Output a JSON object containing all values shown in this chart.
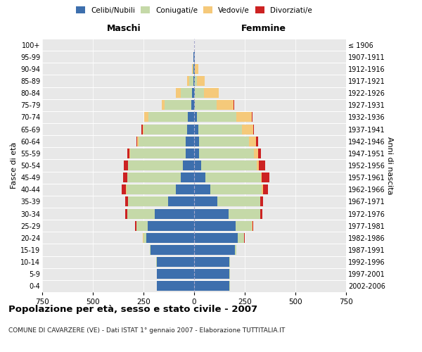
{
  "age_groups": [
    "0-4",
    "5-9",
    "10-14",
    "15-19",
    "20-24",
    "25-29",
    "30-34",
    "35-39",
    "40-44",
    "45-49",
    "50-54",
    "55-59",
    "60-64",
    "65-69",
    "70-74",
    "75-79",
    "80-84",
    "85-89",
    "90-94",
    "95-99",
    "100+"
  ],
  "birth_years": [
    "2002-2006",
    "1997-2001",
    "1992-1996",
    "1987-1991",
    "1982-1986",
    "1977-1981",
    "1972-1976",
    "1967-1971",
    "1962-1966",
    "1957-1961",
    "1952-1956",
    "1947-1951",
    "1942-1946",
    "1937-1941",
    "1932-1936",
    "1927-1931",
    "1922-1926",
    "1917-1921",
    "1912-1916",
    "1907-1911",
    "≤ 1906"
  ],
  "male": {
    "celibi": [
      185,
      185,
      185,
      215,
      235,
      230,
      195,
      130,
      90,
      65,
      55,
      40,
      40,
      35,
      30,
      15,
      10,
      5,
      3,
      2,
      0
    ],
    "coniugati": [
      0,
      0,
      2,
      5,
      15,
      55,
      135,
      195,
      245,
      265,
      270,
      275,
      235,
      215,
      195,
      130,
      55,
      18,
      5,
      2,
      0
    ],
    "vedovi": [
      0,
      0,
      0,
      0,
      2,
      0,
      0,
      0,
      2,
      0,
      2,
      5,
      5,
      5,
      20,
      15,
      25,
      10,
      3,
      0,
      0
    ],
    "divorziati": [
      0,
      0,
      0,
      0,
      2,
      5,
      10,
      15,
      20,
      20,
      20,
      10,
      5,
      5,
      0,
      0,
      0,
      0,
      0,
      0,
      0
    ]
  },
  "female": {
    "nubili": [
      175,
      175,
      175,
      200,
      215,
      205,
      170,
      115,
      80,
      55,
      35,
      25,
      25,
      20,
      15,
      5,
      5,
      3,
      2,
      2,
      0
    ],
    "coniugate": [
      2,
      2,
      3,
      10,
      30,
      80,
      155,
      210,
      255,
      275,
      275,
      270,
      245,
      215,
      195,
      105,
      45,
      10,
      3,
      0,
      0
    ],
    "vedove": [
      0,
      0,
      0,
      0,
      2,
      2,
      2,
      2,
      5,
      5,
      10,
      20,
      35,
      55,
      75,
      85,
      70,
      40,
      15,
      3,
      0
    ],
    "divorziate": [
      0,
      0,
      0,
      0,
      2,
      5,
      10,
      15,
      25,
      35,
      30,
      15,
      10,
      5,
      2,
      2,
      2,
      0,
      0,
      0,
      0
    ]
  },
  "colors": {
    "celibi_nubili": "#3d6fad",
    "coniugati": "#c5d9a8",
    "vedovi": "#f5c97a",
    "divorziati": "#cc2222"
  },
  "xlim": 750,
  "title": "Popolazione per età, sesso e stato civile - 2007",
  "subtitle": "COMUNE DI CAVARZERE (VE) - Dati ISTAT 1° gennaio 2007 - Elaborazione TUTTITALIA.IT",
  "xlabel_left": "Maschi",
  "xlabel_right": "Femmine",
  "ylabel_left": "Fasce di età",
  "ylabel_right": "Anni di nascita",
  "background_color": "#ffffff",
  "plot_bg_color": "#e8e8e8",
  "grid_color": "#ffffff",
  "xticks": [
    -750,
    -500,
    -250,
    0,
    250,
    500,
    750
  ],
  "xtick_labels": [
    "750",
    "500",
    "250",
    "0",
    "250",
    "500",
    "750"
  ]
}
